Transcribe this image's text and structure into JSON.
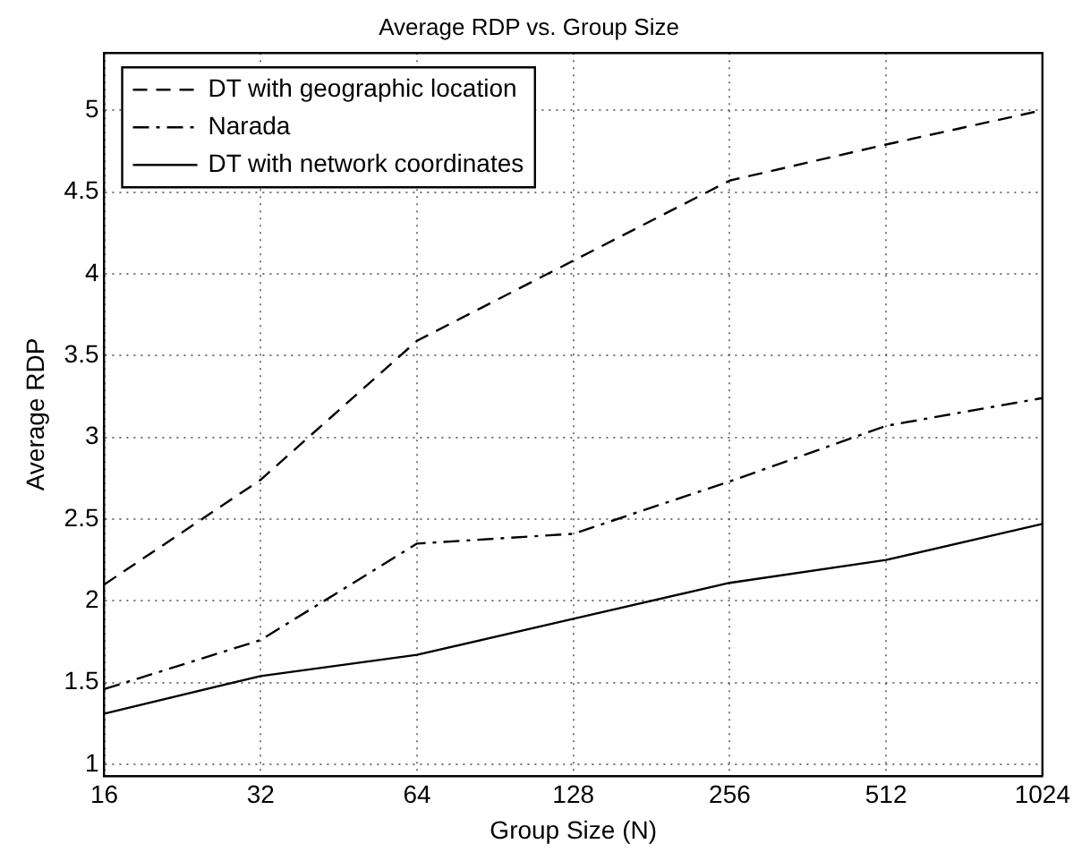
{
  "chart_data": {
    "type": "line",
    "title": "Average RDP vs. Group Size",
    "xlabel": "Group Size (N)",
    "ylabel": "Average RDP",
    "x": [
      16,
      32,
      64,
      128,
      256,
      512,
      1024
    ],
    "log": "x",
    "xlim": [
      16,
      1024
    ],
    "xticks": [
      16,
      32,
      64,
      128,
      256,
      512,
      1024
    ],
    "ylim": [
      0.93,
      5.35
    ],
    "yticks": [
      1,
      1.5,
      2,
      2.5,
      3,
      3.5,
      4,
      4.5,
      5
    ],
    "grid": true,
    "legend": "top left",
    "marker": "none",
    "series": [
      {
        "name": "DT with geographic location",
        "color": "#000000",
        "line_style": "dashed",
        "values": [
          2.1,
          2.74,
          3.59,
          4.08,
          4.57,
          4.79,
          5.0
        ]
      },
      {
        "name": "Narada",
        "color": "#000000",
        "line_style": "dashdot",
        "values": [
          1.46,
          1.76,
          2.35,
          2.41,
          2.73,
          3.07,
          3.24
        ]
      },
      {
        "name": "DT with network coordinates",
        "color": "#000000",
        "line_style": "solid",
        "values": [
          1.31,
          1.54,
          1.67,
          1.89,
          2.11,
          2.25,
          2.47
        ]
      }
    ]
  }
}
